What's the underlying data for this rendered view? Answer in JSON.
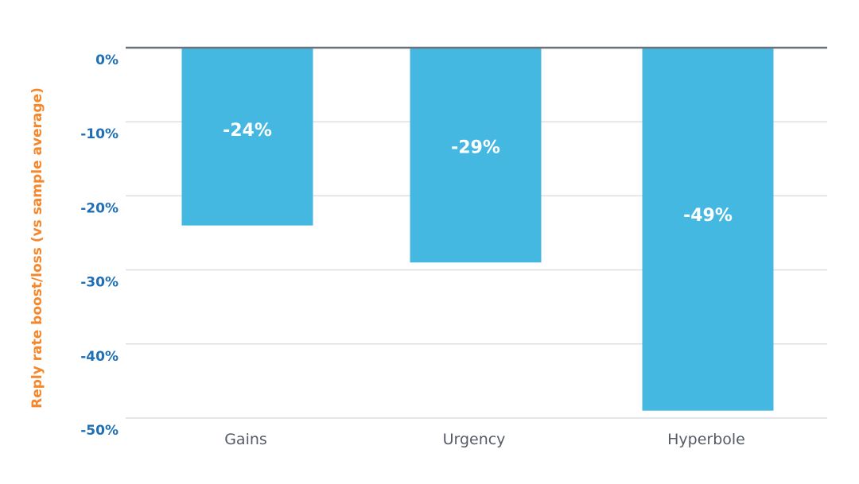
{
  "chart_data": {
    "type": "bar",
    "categories": [
      "Gains",
      "Urgency",
      "Hyperbole"
    ],
    "values": [
      -24,
      -29,
      -49
    ],
    "data_labels": [
      "-24%",
      "-29%",
      "-49%"
    ],
    "title": "",
    "xlabel": "",
    "ylabel": "Reply rate boost/loss (vs sample average)",
    "ylim": [
      -50,
      0
    ],
    "yticks": [
      0,
      -10,
      -20,
      -30,
      -40,
      -50
    ],
    "ytick_labels": [
      "0%",
      "-10%",
      "-20%",
      "-30%",
      "-40%",
      "-50%"
    ],
    "grid": true,
    "legend": "none"
  },
  "colors": {
    "bar": "#45b8e2",
    "ylabel": "#f5862a",
    "ytick": "#1f6fb5",
    "xtick": "#555b66",
    "grid": "#dcdfe3",
    "zero_line": "#6b7178",
    "data_label": "#ffffff"
  }
}
